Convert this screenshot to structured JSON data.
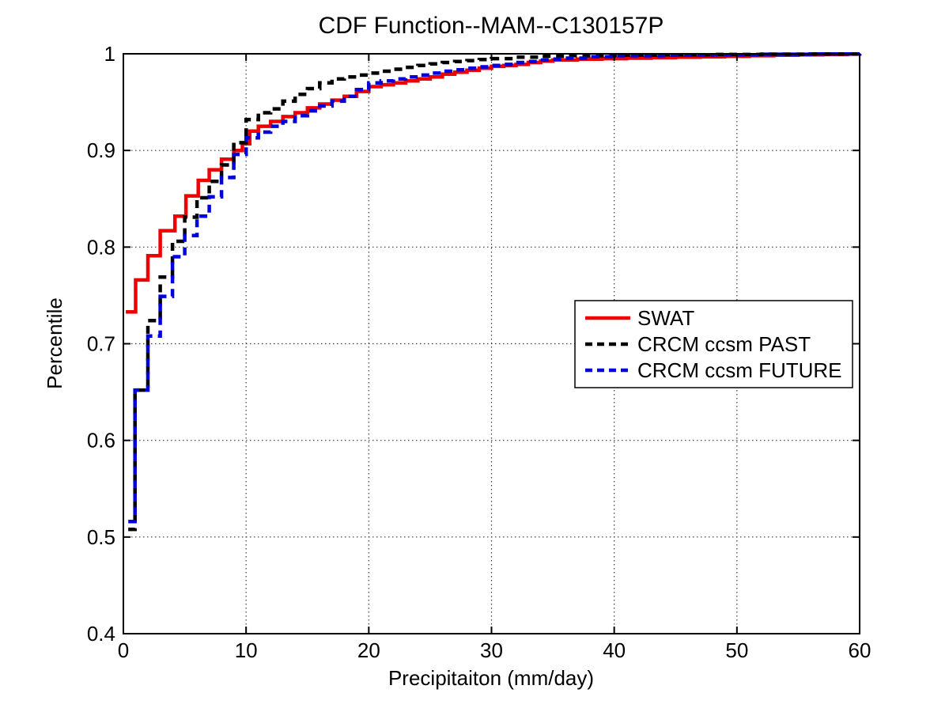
{
  "chart_data": {
    "type": "line",
    "subtype": "step-cdf",
    "title": "CDF Function--MAM--C130157P",
    "xlabel": "Precipitaiton (mm/day)",
    "ylabel": "Percentile",
    "xlim": [
      0,
      60
    ],
    "ylim": [
      0.4,
      1.0
    ],
    "xticks": [
      0,
      10,
      20,
      30,
      40,
      50,
      60
    ],
    "xtick_labels": [
      "0",
      "10",
      "20",
      "30",
      "40",
      "50",
      "60"
    ],
    "yticks": [
      0.4,
      0.5,
      0.6,
      0.7,
      0.8,
      0.9,
      1
    ],
    "ytick_labels": [
      "0.4",
      "0.5",
      "0.6",
      "0.7",
      "0.8",
      "0.9",
      "1"
    ],
    "grid": "dotted",
    "grid_color": "#3a3a3a",
    "axis_color": "#000000",
    "background_color": "#ffffff",
    "legend_position": "right-center",
    "series": [
      {
        "name": "SWAT",
        "color": "#ee0000",
        "style": "solid",
        "points": [
          [
            0.2,
            0.733
          ],
          [
            1,
            0.766
          ],
          [
            2,
            0.791
          ],
          [
            3,
            0.817
          ],
          [
            4.2,
            0.832
          ],
          [
            5.1,
            0.853
          ],
          [
            6.1,
            0.869
          ],
          [
            7,
            0.88
          ],
          [
            8,
            0.891
          ],
          [
            9,
            0.9
          ],
          [
            9.7,
            0.907
          ],
          [
            10.3,
            0.92
          ],
          [
            11,
            0.925
          ],
          [
            12,
            0.93
          ],
          [
            13,
            0.935
          ],
          [
            14,
            0.939
          ],
          [
            15,
            0.944
          ],
          [
            16,
            0.948
          ],
          [
            17,
            0.952
          ],
          [
            18,
            0.956
          ],
          [
            19,
            0.961
          ],
          [
            20,
            0.966
          ],
          [
            21,
            0.968
          ],
          [
            22,
            0.97
          ],
          [
            23,
            0.972
          ],
          [
            24,
            0.974
          ],
          [
            25,
            0.976
          ],
          [
            26,
            0.979
          ],
          [
            27,
            0.981
          ],
          [
            28,
            0.983
          ],
          [
            29,
            0.985
          ],
          [
            30,
            0.987
          ],
          [
            31,
            0.988
          ],
          [
            32,
            0.989
          ],
          [
            33,
            0.991
          ],
          [
            34,
            0.9925
          ],
          [
            35,
            0.9935
          ],
          [
            37,
            0.9945
          ],
          [
            39,
            0.995
          ],
          [
            41,
            0.9955
          ],
          [
            43,
            0.996
          ],
          [
            45,
            0.9965
          ],
          [
            47,
            0.997
          ],
          [
            49,
            0.9975
          ],
          [
            51,
            0.998
          ],
          [
            53,
            0.9985
          ],
          [
            55,
            0.999
          ],
          [
            57,
            0.9993
          ],
          [
            59,
            0.9997
          ],
          [
            60,
            1.0
          ]
        ]
      },
      {
        "name": "CRCM ccsm PAST",
        "color": "#000000",
        "style": "dashed",
        "points": [
          [
            0.4,
            0.508
          ],
          [
            0.95,
            0.652
          ],
          [
            2,
            0.724
          ],
          [
            3,
            0.769
          ],
          [
            4,
            0.806
          ],
          [
            5,
            0.831
          ],
          [
            6,
            0.851
          ],
          [
            7,
            0.868
          ],
          [
            8,
            0.885
          ],
          [
            9,
            0.908
          ],
          [
            10,
            0.932
          ],
          [
            11,
            0.939
          ],
          [
            12,
            0.943
          ],
          [
            13,
            0.951
          ],
          [
            14,
            0.958
          ],
          [
            15,
            0.964
          ],
          [
            16,
            0.97
          ],
          [
            17,
            0.974
          ],
          [
            18,
            0.976
          ],
          [
            19,
            0.978
          ],
          [
            20,
            0.98
          ],
          [
            21,
            0.982
          ],
          [
            22,
            0.984
          ],
          [
            23,
            0.986
          ],
          [
            24,
            0.988
          ],
          [
            25,
            0.9895
          ],
          [
            26,
            0.991
          ],
          [
            27,
            0.992
          ],
          [
            28,
            0.993
          ],
          [
            29,
            0.994
          ],
          [
            30,
            0.995
          ],
          [
            32,
            0.9965
          ],
          [
            34,
            0.9975
          ],
          [
            36,
            0.998
          ],
          [
            40,
            0.9985
          ],
          [
            44,
            0.999
          ],
          [
            48,
            0.9993
          ],
          [
            52,
            0.9996
          ],
          [
            56,
            0.9998
          ],
          [
            60,
            1.0
          ]
        ]
      },
      {
        "name": "CRCM ccsm FUTURE",
        "color": "#0000dd",
        "style": "dashed",
        "points": [
          [
            0.4,
            0.516
          ],
          [
            0.95,
            0.652
          ],
          [
            2,
            0.708
          ],
          [
            3,
            0.749
          ],
          [
            4,
            0.79
          ],
          [
            5,
            0.812
          ],
          [
            6,
            0.832
          ],
          [
            7,
            0.852
          ],
          [
            8,
            0.872
          ],
          [
            9,
            0.896
          ],
          [
            10,
            0.913
          ],
          [
            11,
            0.919
          ],
          [
            12,
            0.925
          ],
          [
            13,
            0.93
          ],
          [
            14,
            0.936
          ],
          [
            15,
            0.941
          ],
          [
            16,
            0.946
          ],
          [
            17,
            0.951
          ],
          [
            18,
            0.956
          ],
          [
            19,
            0.963
          ],
          [
            20,
            0.97
          ],
          [
            21,
            0.972
          ],
          [
            22,
            0.974
          ],
          [
            23,
            0.976
          ],
          [
            24,
            0.978
          ],
          [
            25,
            0.98
          ],
          [
            26,
            0.982
          ],
          [
            27,
            0.9835
          ],
          [
            28,
            0.985
          ],
          [
            29,
            0.9865
          ],
          [
            30,
            0.988
          ],
          [
            31,
            0.989
          ],
          [
            32,
            0.991
          ],
          [
            33,
            0.992
          ],
          [
            34,
            0.9935
          ],
          [
            35,
            0.9945
          ],
          [
            36,
            0.9955
          ],
          [
            38,
            0.997
          ],
          [
            40,
            0.998
          ],
          [
            44,
            0.9985
          ],
          [
            48,
            0.999
          ],
          [
            52,
            0.9995
          ],
          [
            56,
            0.9998
          ],
          [
            60,
            1.0
          ]
        ]
      }
    ]
  }
}
